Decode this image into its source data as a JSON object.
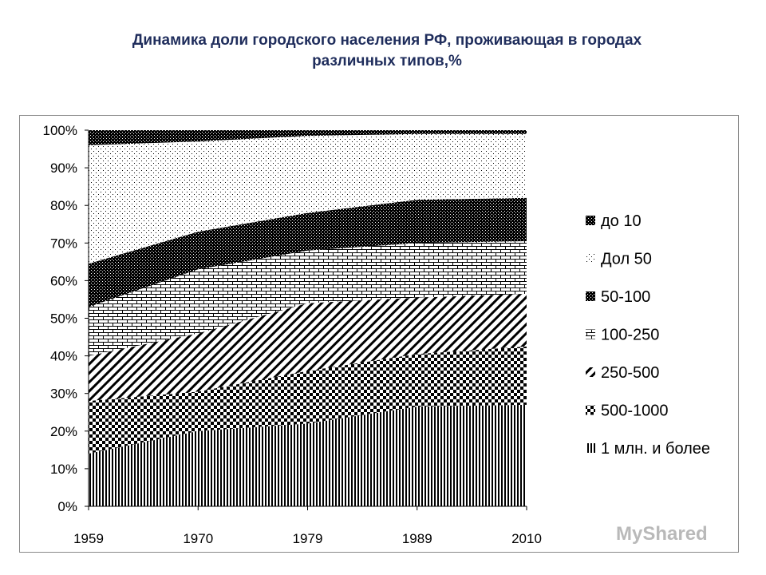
{
  "chart_data": {
    "type": "area",
    "stacked": true,
    "normalized": true,
    "title": "Динамика доли городского населения РФ, проживающая в городах различных типов,%",
    "title_lines": [
      "Динамика доли городского населения РФ, проживающая в городах",
      "различных типов,%"
    ],
    "categories": [
      "1959",
      "1970",
      "1979",
      "1989",
      "2010"
    ],
    "ylim": [
      0,
      100
    ],
    "y_ticks": [
      "0%",
      "10%",
      "20%",
      "30%",
      "40%",
      "50%",
      "60%",
      "70%",
      "80%",
      "90%",
      "100%"
    ],
    "legend_position": "right",
    "series": [
      {
        "name": "1 млн. и более",
        "pattern": "vertical-lines",
        "values": [
          14,
          20,
          22,
          26.5,
          27
        ]
      },
      {
        "name": "500-1000",
        "pattern": "checker",
        "values": [
          14,
          10.5,
          14,
          14,
          15.5
        ]
      },
      {
        "name": "250-500",
        "pattern": "diagonal",
        "values": [
          12,
          15.5,
          18,
          15,
          14
        ]
      },
      {
        "name": "100-250",
        "pattern": "brick",
        "values": [
          13,
          17,
          14,
          14.5,
          14
        ]
      },
      {
        "name": "50-100",
        "pattern": "dense-dots",
        "values": [
          11.5,
          10,
          10,
          11.5,
          11.5
        ]
      },
      {
        "name": "Дол 50",
        "pattern": "sparse-dots",
        "values": [
          31.5,
          24,
          20.5,
          17.5,
          17
        ]
      },
      {
        "name": "до 10",
        "pattern": "dark-dots",
        "values": [
          4,
          3,
          1.5,
          1,
          1
        ]
      }
    ]
  },
  "watermark": "MyShared"
}
